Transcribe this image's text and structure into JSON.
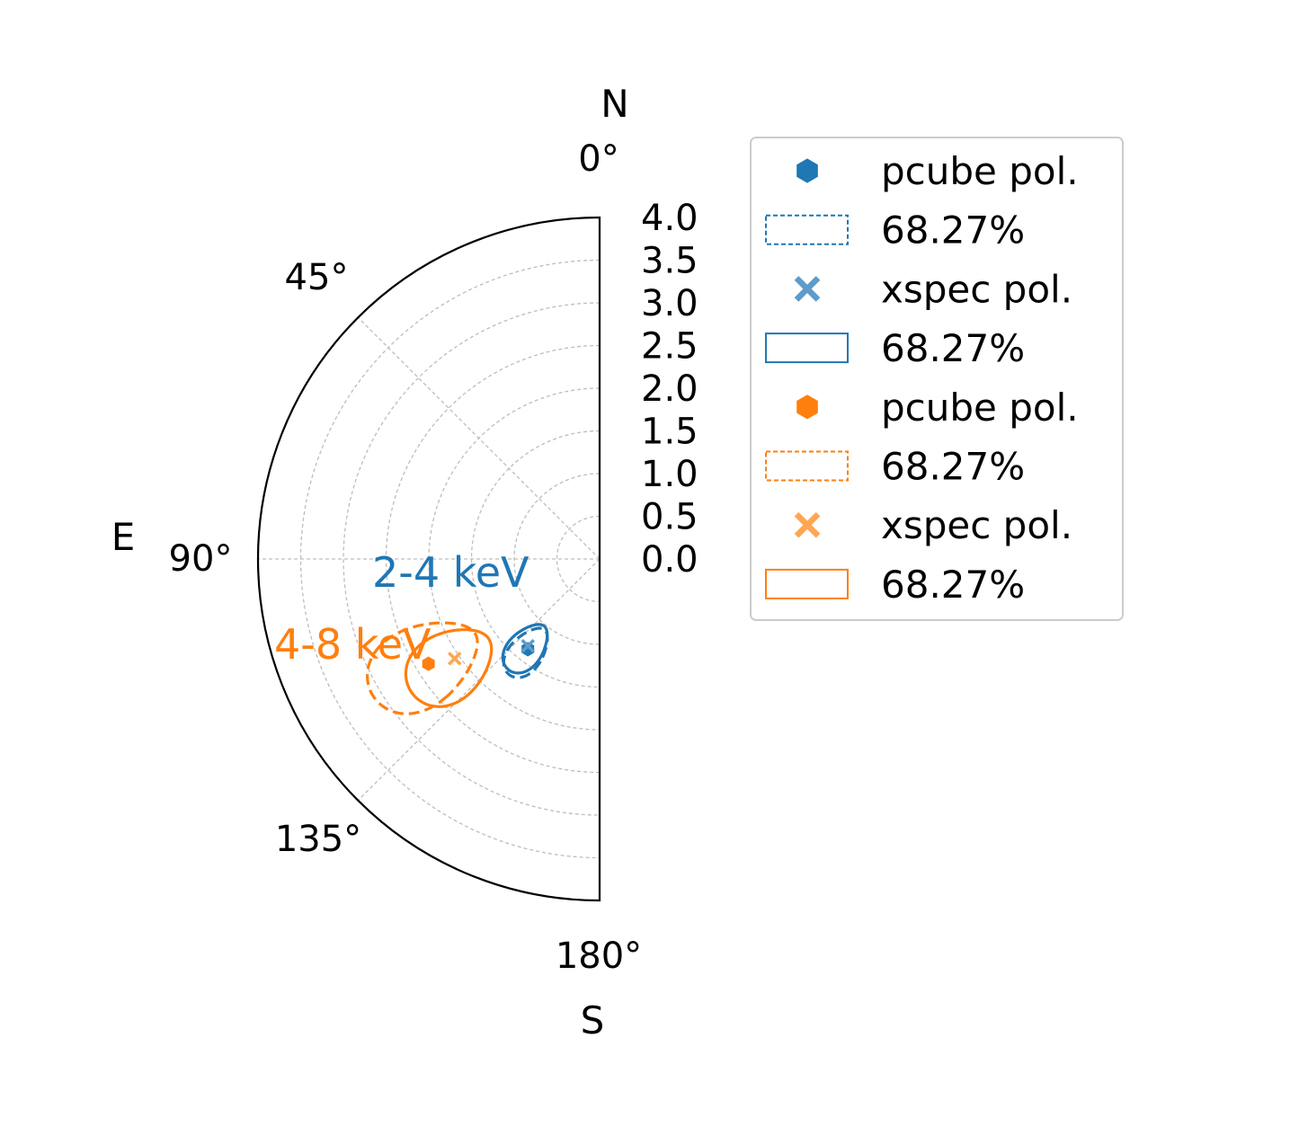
{
  "chart_data": {
    "type": "scatter",
    "projection": "polar",
    "theta_range_deg": [
      0,
      180
    ],
    "theta_direction": "clockwise-from-north-toward-east",
    "rlim": [
      0,
      4.0
    ],
    "r_ticks": [
      "0.0",
      "0.5",
      "1.0",
      "1.5",
      "2.0",
      "2.5",
      "3.0",
      "3.5",
      "4.0"
    ],
    "theta_ticks": [
      {
        "deg": 0,
        "label": "0°"
      },
      {
        "deg": 45,
        "label": "45°"
      },
      {
        "deg": 90,
        "label": "90°"
      },
      {
        "deg": 135,
        "label": "135°"
      },
      {
        "deg": 180,
        "label": "180°"
      }
    ],
    "direction_labels": {
      "north": "N",
      "east": "E",
      "south": "S"
    },
    "grid": true,
    "legend_position": "right",
    "colors": {
      "blue": "#1f77b4",
      "orange": "#ff7f0e",
      "light_blue": "#5e9bcb",
      "light_orange": "#ffa652"
    },
    "annotations": [
      {
        "text": "2-4 keV",
        "color": "#1f77b4"
      },
      {
        "text": "4-8 keV",
        "color": "#ff7f0e"
      }
    ],
    "series": [
      {
        "band": "2-4 keV",
        "method": "pcube",
        "marker": "hexagon",
        "color": "#1f77b4",
        "theta_deg": 141.5,
        "r": 1.35,
        "contour": {
          "style": "dashed",
          "label": "68.27%",
          "theta_min": 134,
          "theta_max": 150,
          "r_min": 1.05,
          "r_max": 1.72
        }
      },
      {
        "band": "2-4 keV",
        "method": "xspec",
        "marker": "x",
        "color": "#5e9bcb",
        "theta_deg": 140.5,
        "r": 1.32,
        "contour": {
          "style": "solid",
          "label": "68.27%",
          "theta_min": 132,
          "theta_max": 149,
          "r_min": 1.02,
          "r_max": 1.68
        }
      },
      {
        "band": "4-8 keV",
        "method": "pcube",
        "marker": "hexagon",
        "color": "#ff7f0e",
        "theta_deg": 121.5,
        "r": 2.35,
        "contour": {
          "style": "dashed",
          "label": "68.27%",
          "theta_min": 110,
          "theta_max": 132,
          "r_min": 1.7,
          "r_max": 3.1
        }
      },
      {
        "band": "4-8 keV",
        "method": "xspec",
        "marker": "x",
        "color": "#ffa652",
        "theta_deg": 124.5,
        "r": 2.06,
        "contour": {
          "style": "solid",
          "label": "68.27%",
          "theta_min": 115,
          "theta_max": 136,
          "r_min": 1.6,
          "r_max": 2.7
        }
      }
    ],
    "legend": [
      {
        "kind": "marker",
        "marker": "hexagon",
        "color": "#1f77b4",
        "label": "pcube pol."
      },
      {
        "kind": "patch",
        "style": "dashed",
        "color": "#1f77b4",
        "label": "68.27%"
      },
      {
        "kind": "marker",
        "marker": "x",
        "color": "#5e9bcb",
        "label": "xspec pol."
      },
      {
        "kind": "patch",
        "style": "solid",
        "color": "#1f77b4",
        "label": "68.27%"
      },
      {
        "kind": "marker",
        "marker": "hexagon",
        "color": "#ff7f0e",
        "label": "pcube pol."
      },
      {
        "kind": "patch",
        "style": "dashed",
        "color": "#ff7f0e",
        "label": "68.27%"
      },
      {
        "kind": "marker",
        "marker": "x",
        "color": "#ffa652",
        "label": "xspec pol."
      },
      {
        "kind": "patch",
        "style": "solid",
        "color": "#ff7f0e",
        "label": "68.27%"
      }
    ]
  }
}
